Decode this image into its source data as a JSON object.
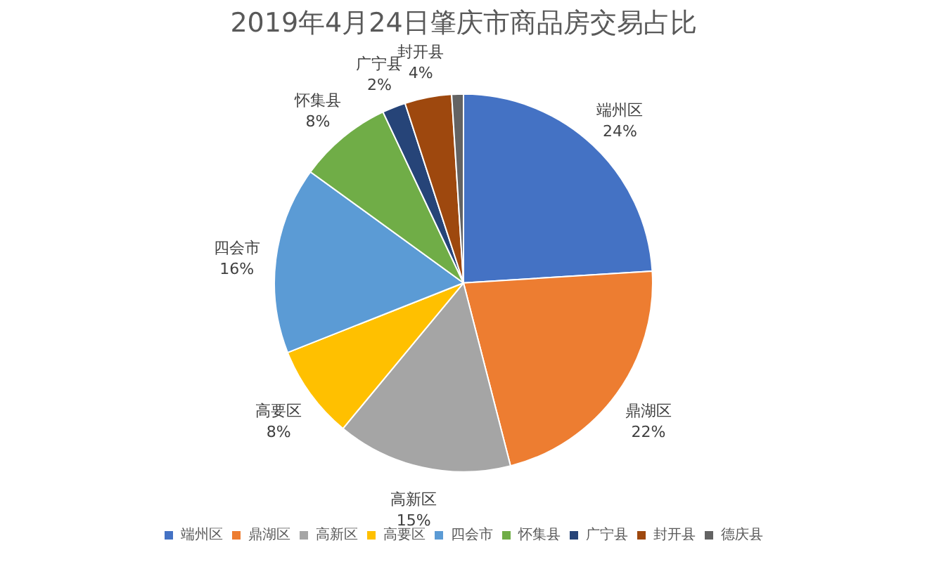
{
  "chart_data": {
    "type": "pie",
    "title": "2019年4月24日肇庆市商品房交易占比",
    "categories": [
      "端州区",
      "鼎湖区",
      "高新区",
      "高要区",
      "四会市",
      "怀集县",
      "广宁县",
      "封开县",
      "德庆县"
    ],
    "values": [
      24,
      22,
      15,
      8,
      16,
      8,
      2,
      4,
      1
    ],
    "value_labels": [
      "24%",
      "22%",
      "15%",
      "8%",
      "16%",
      "8%",
      "2%",
      "4%",
      null
    ],
    "colors": [
      "#4472c4",
      "#ed7d31",
      "#a5a5a5",
      "#ffc000",
      "#5b9bd5",
      "#70ad47",
      "#264478",
      "#9e480e",
      "#636363"
    ],
    "legend": "bottom"
  }
}
